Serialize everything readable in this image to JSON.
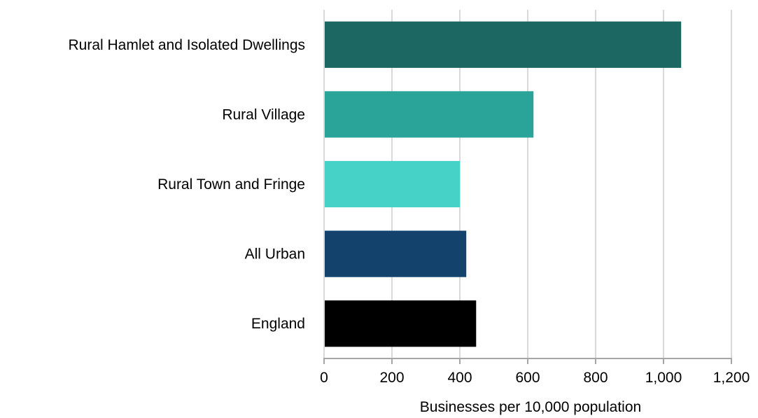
{
  "chart_data": {
    "type": "bar",
    "orientation": "horizontal",
    "categories": [
      "Rural Hamlet and Isolated Dwellings",
      "Rural Village",
      "Rural Town and Fringe",
      "All Urban",
      "England"
    ],
    "values": [
      1052,
      617,
      400,
      419,
      448
    ],
    "colors": [
      "#1d6762",
      "#2aa499",
      "#47d2c7",
      "#13436c",
      "#000000"
    ],
    "title": "",
    "xlabel": "Businesses per 10,000 population",
    "ylabel": "",
    "xlim": [
      0,
      1200
    ],
    "xticks": [
      0,
      200,
      400,
      600,
      800,
      1000,
      1200
    ],
    "xtick_labels": [
      "0",
      "200",
      "400",
      "600",
      "800",
      "1,000",
      "1,200"
    ],
    "grid": "vertical",
    "legend": "none"
  }
}
